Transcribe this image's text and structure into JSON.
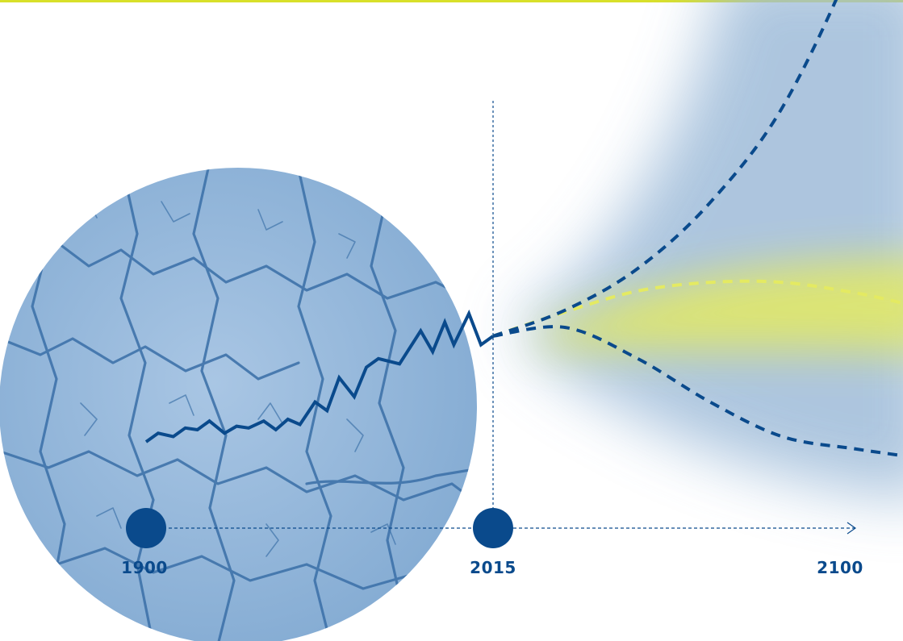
{
  "colors": {
    "top_bar": "#d8e02a",
    "primary_blue": "#0a4a8c",
    "haze_blue": "#9fbcd9",
    "highlight_yellow": "#e4ea62",
    "circle_base": "#7fa8d2"
  },
  "timeline": {
    "years": [
      {
        "id": "start",
        "label": "1900"
      },
      {
        "id": "present",
        "label": "2015"
      },
      {
        "id": "end",
        "label": "2100"
      }
    ]
  },
  "imagery": {
    "circle_icon": "cracked-earth-icon"
  },
  "chart_data": {
    "type": "line",
    "xlim": [
      1900,
      2100
    ],
    "series": [
      {
        "kind": "historical",
        "style": "solid",
        "x": [
          1900,
          1904,
          1909,
          1913,
          1917,
          1921,
          1926,
          1930,
          1934,
          1939,
          1943,
          1947,
          1951,
          1956,
          1960,
          1964,
          1969,
          1973,
          1977,
          1984,
          1991,
          1995,
          1999,
          2002,
          2007,
          2011,
          2015
        ],
        "y": [
          0.12,
          0.17,
          0.15,
          0.2,
          0.19,
          0.24,
          0.17,
          0.21,
          0.2,
          0.24,
          0.19,
          0.25,
          0.22,
          0.35,
          0.3,
          0.49,
          0.38,
          0.55,
          0.6,
          0.57,
          0.76,
          0.64,
          0.81,
          0.68,
          0.86,
          0.68,
          0.73
        ]
      },
      {
        "kind": "projection-high",
        "style": "dashed",
        "x": [
          2015,
          2030,
          2045,
          2060,
          2075,
          2090,
          2100
        ],
        "y": [
          0.73,
          0.88,
          1.12,
          1.5,
          2.05,
          2.92,
          3.72
        ]
      },
      {
        "kind": "projection-mid",
        "style": "dashed",
        "x": [
          2015,
          2030,
          2045,
          2060,
          2075,
          2090,
          2100
        ],
        "y": [
          0.73,
          0.87,
          0.99,
          1.04,
          1.04,
          0.98,
          0.92
        ]
      },
      {
        "kind": "projection-low",
        "style": "dashed",
        "x": [
          2015,
          2030,
          2045,
          2060,
          2075,
          2090,
          2100
        ],
        "y": [
          0.73,
          0.78,
          0.6,
          0.35,
          0.15,
          0.08,
          0.04
        ]
      }
    ]
  }
}
